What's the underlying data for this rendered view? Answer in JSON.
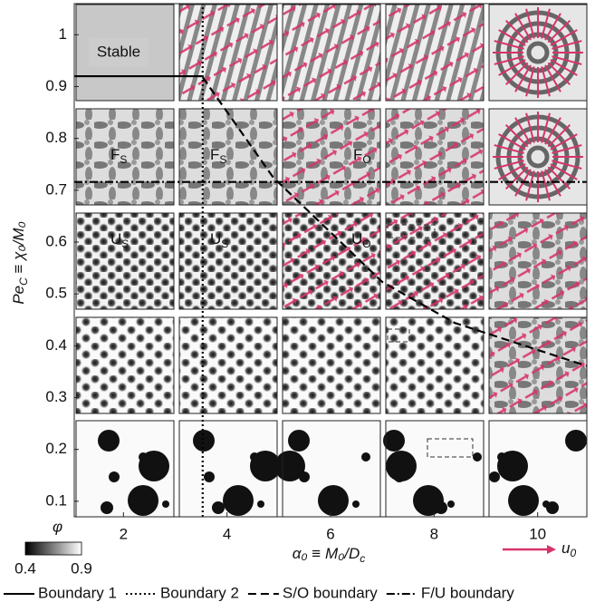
{
  "chart_data": {
    "type": "line",
    "xlim": [
      1.05,
      10.95
    ],
    "ylim": [
      0.07,
      1.06
    ],
    "xticks": [
      2,
      4,
      6,
      8,
      10
    ],
    "yticks": [
      0.1,
      0.2,
      0.3,
      0.4,
      0.5,
      0.6,
      0.7,
      0.8,
      0.9,
      1
    ],
    "x_label": {
      "text": "α₀ ≡ M₀/D",
      "sub": "c"
    },
    "y_label": {
      "text": "Pe",
      "sub": "C",
      "rest": " ≡ χ₀/M₀"
    },
    "series": [
      {
        "name": "Boundary 1",
        "color": "#000000",
        "dash": "solid",
        "x": [
          1.05,
          3.53
        ],
        "values": [
          0.92,
          0.92
        ]
      },
      {
        "name": "Boundary 2",
        "color": "#000000",
        "dash": "dotted",
        "x": [
          3.53,
          3.53
        ],
        "values": [
          0.07,
          1.06
        ]
      },
      {
        "name": "S/O boundary",
        "color": "#000000",
        "dash": "dashed",
        "x": [
          3.53,
          4.89,
          7.0,
          8.4,
          10.95
        ],
        "values": [
          0.918,
          0.725,
          0.523,
          0.444,
          0.361
        ]
      },
      {
        "name": "F/U boundary",
        "color": "#000000",
        "dash": "dashdot",
        "x": [
          1.05,
          10.95
        ],
        "values": [
          0.716,
          0.716
        ]
      }
    ],
    "panel_labels": [
      {
        "main": "Stable"
      },
      {
        "main": "F",
        "sub": "S"
      },
      {
        "main": "F",
        "sub": "S"
      },
      {
        "main": "F",
        "sub": "O"
      },
      {
        "main": "U",
        "sub": "S"
      },
      {
        "main": "U",
        "sub": "S"
      },
      {
        "main": "U",
        "sub": "O"
      }
    ],
    "colorbar": {
      "label": "φ",
      "ticks": [
        0.4,
        0.9
      ]
    },
    "arrow_legend": {
      "text": "u",
      "sub": "0",
      "color": "#d6336c"
    }
  }
}
